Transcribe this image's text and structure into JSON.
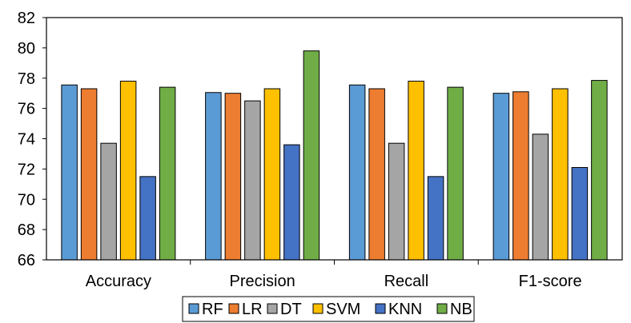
{
  "chart_data": {
    "type": "bar",
    "title": "",
    "xlabel": "",
    "ylabel": "",
    "categories": [
      "Accuracy",
      "Precision",
      "Recall",
      "F1-score"
    ],
    "ylim": [
      66,
      82
    ],
    "yticks": [
      66,
      68,
      70,
      72,
      74,
      76,
      78,
      80,
      82
    ],
    "grid": false,
    "legend_position": "bottom",
    "series": [
      {
        "name": "RF",
        "color": "#5B9BD5",
        "values": [
          77.55,
          77.05,
          77.55,
          77.0
        ]
      },
      {
        "name": "LR",
        "color": "#ED7D31",
        "values": [
          77.3,
          77.0,
          77.3,
          77.1
        ]
      },
      {
        "name": "DT",
        "color": "#A5A5A5",
        "values": [
          73.7,
          76.5,
          73.7,
          74.3
        ]
      },
      {
        "name": "SVM",
        "color": "#FFC000",
        "values": [
          77.8,
          77.3,
          77.8,
          77.3
        ]
      },
      {
        "name": "KNN",
        "color": "#4472C4",
        "values": [
          71.5,
          73.6,
          71.5,
          72.1
        ]
      },
      {
        "name": "NB",
        "color": "#70AD47",
        "values": [
          77.4,
          79.8,
          77.4,
          77.85
        ]
      }
    ]
  }
}
